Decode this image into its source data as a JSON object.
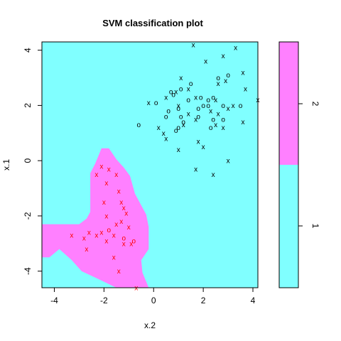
{
  "chart_data": {
    "type": "scatter",
    "title": "SVM classification plot",
    "xlabel": "x.2",
    "ylabel": "x.1",
    "xlim": [
      -4.5,
      4.2
    ],
    "ylim": [
      -4.6,
      4.3
    ],
    "x_ticks": [
      -4,
      -2,
      0,
      2,
      4
    ],
    "y_ticks": [
      -4,
      -2,
      0,
      2,
      4
    ],
    "legend_labels": [
      "1",
      "2"
    ],
    "colors": {
      "class1_region": "#80ffff",
      "class2_region": "#ff80ff",
      "class1_points": "#000000",
      "class2_points": "#ff0000"
    },
    "region_class2_boundary": [
      [
        -4.5,
        -2.3
      ],
      [
        -3.0,
        -2.3
      ],
      [
        -2.7,
        -2.1
      ],
      [
        -2.55,
        -1.85
      ],
      [
        -2.55,
        -0.45
      ],
      [
        -2.35,
        -0.1
      ],
      [
        -2.1,
        0.45
      ],
      [
        -1.8,
        0.45
      ],
      [
        -1.5,
        0.05
      ],
      [
        -1.2,
        -0.25
      ],
      [
        -0.95,
        -0.55
      ],
      [
        -0.75,
        -1.2
      ],
      [
        -0.3,
        -1.95
      ],
      [
        -0.2,
        -2.4
      ],
      [
        -0.2,
        -3.2
      ],
      [
        -0.5,
        -3.6
      ],
      [
        -0.45,
        -4.05
      ],
      [
        -0.2,
        -4.6
      ],
      [
        -1.5,
        -4.6
      ],
      [
        -2.2,
        -4.3
      ],
      [
        -2.9,
        -4.0
      ],
      [
        -3.3,
        -3.6
      ],
      [
        -3.8,
        -3.2
      ],
      [
        -4.2,
        -3.5
      ],
      [
        -4.5,
        -3.5
      ]
    ],
    "series": [
      {
        "marker": "x",
        "color": "#000000",
        "points": [
          [
            1.6,
            4.2
          ],
          [
            2.8,
            3.8
          ],
          [
            3.3,
            4.1
          ],
          [
            2.1,
            3.6
          ],
          [
            3.6,
            3.2
          ],
          [
            1.1,
            3.0
          ],
          [
            1.4,
            2.6
          ],
          [
            2.9,
            2.9
          ],
          [
            2.6,
            2.8
          ],
          [
            3.7,
            2.6
          ],
          [
            1.7,
            2.3
          ],
          [
            2.5,
            2.2
          ],
          [
            3.2,
            2.0
          ],
          [
            4.2,
            2.2
          ],
          [
            3.0,
            1.9
          ],
          [
            2.3,
            1.8
          ],
          [
            2.8,
            1.2
          ],
          [
            0.9,
            2.5
          ],
          [
            0.5,
            2.3
          ],
          [
            1.7,
            1.5
          ],
          [
            1.2,
            1.3
          ],
          [
            1.4,
            1.7
          ],
          [
            2.6,
            1.7
          ],
          [
            1.8,
            0.7
          ],
          [
            1.0,
            0.4
          ],
          [
            0.5,
            0.8
          ],
          [
            0.2,
            1.2
          ],
          [
            2.0,
            0.5
          ],
          [
            3.0,
            0.0
          ],
          [
            1.7,
            -0.3
          ],
          [
            2.4,
            -0.5
          ],
          [
            -0.2,
            2.1
          ],
          [
            0.4,
            1.0
          ],
          [
            2.5,
            1.3
          ],
          [
            3.6,
            1.4
          ],
          [
            1.0,
            2.0
          ]
        ]
      },
      {
        "marker": "o",
        "color": "#000000",
        "points": [
          [
            3.0,
            3.1
          ],
          [
            2.6,
            3.0
          ],
          [
            1.5,
            2.8
          ],
          [
            1.1,
            2.6
          ],
          [
            0.7,
            2.5
          ],
          [
            1.4,
            2.2
          ],
          [
            1.9,
            2.3
          ],
          [
            2.0,
            2.0
          ],
          [
            2.2,
            2.2
          ],
          [
            2.4,
            2.3
          ],
          [
            1.8,
            1.9
          ],
          [
            1.0,
            1.9
          ],
          [
            0.6,
            1.8
          ],
          [
            0.5,
            1.6
          ],
          [
            1.1,
            1.6
          ],
          [
            0.1,
            2.1
          ],
          [
            1.8,
            1.6
          ],
          [
            2.4,
            1.5
          ],
          [
            2.8,
            1.5
          ],
          [
            3.5,
            2.0
          ],
          [
            1.2,
            1.4
          ],
          [
            1.0,
            1.2
          ],
          [
            0.9,
            1.1
          ],
          [
            -0.6,
            1.3
          ],
          [
            0.8,
            2.4
          ],
          [
            2.3,
            1.2
          ],
          [
            2.2,
            2.0
          ],
          [
            2.8,
            2.0
          ]
        ]
      },
      {
        "marker": "x",
        "color": "#ff0000",
        "points": [
          [
            -2.1,
            -0.2
          ],
          [
            -1.8,
            -0.3
          ],
          [
            -2.3,
            -0.5
          ],
          [
            -1.5,
            -0.5
          ],
          [
            -1.9,
            -0.8
          ],
          [
            -1.4,
            -1.1
          ],
          [
            -1.3,
            -1.5
          ],
          [
            -2.0,
            -1.5
          ],
          [
            -1.9,
            -2.0
          ],
          [
            -1.2,
            -1.7
          ],
          [
            -2.1,
            -2.6
          ],
          [
            -1.1,
            -1.9
          ],
          [
            -1.5,
            -2.3
          ],
          [
            -1.3,
            -2.2
          ],
          [
            -1.0,
            -2.4
          ],
          [
            -1.6,
            -2.7
          ],
          [
            -2.3,
            -2.7
          ],
          [
            -3.3,
            -2.7
          ],
          [
            -2.8,
            -2.8
          ],
          [
            -2.6,
            -2.6
          ],
          [
            -1.9,
            -2.9
          ],
          [
            -1.2,
            -3.0
          ],
          [
            -2.7,
            -3.2
          ],
          [
            -1.6,
            -3.5
          ],
          [
            -1.4,
            -4.0
          ],
          [
            -0.9,
            -3.0
          ],
          [
            -0.7,
            -4.6
          ]
        ]
      },
      {
        "marker": "o",
        "color": "#ff0000",
        "points": [
          [
            -1.8,
            -2.5
          ],
          [
            -1.2,
            -2.8
          ],
          [
            -0.8,
            -2.9
          ]
        ]
      }
    ]
  }
}
